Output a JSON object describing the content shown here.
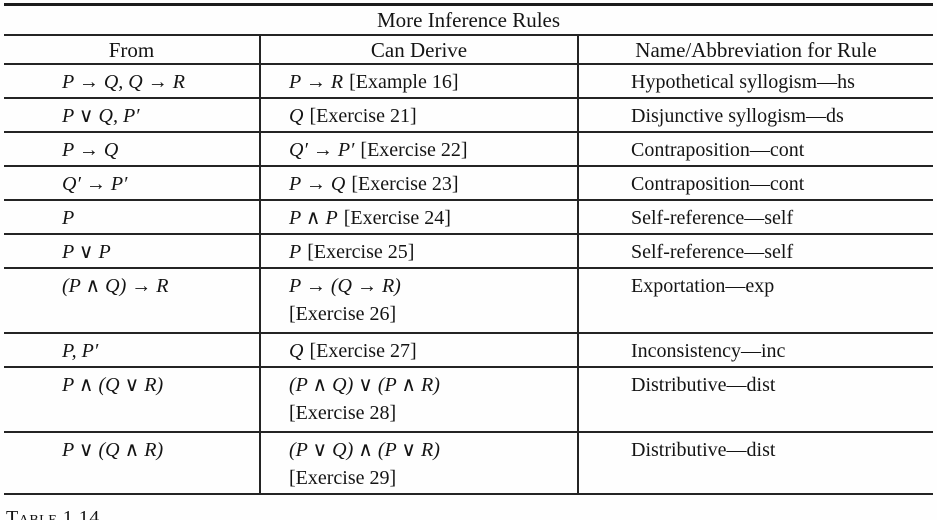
{
  "page": {
    "background": "#fefefe",
    "ink_color": "#141414"
  },
  "table": {
    "title": "More Inference Rules",
    "headers": [
      "From",
      "Can Derive",
      "Name/Abbreviation for Rule"
    ],
    "rows": [
      {
        "from": "P → Q, Q → R",
        "derive": "P → R",
        "note": "[Example 16]",
        "note_on_second_line": false,
        "name": "Hypothetical syllogism—hs"
      },
      {
        "from": "P ∨ Q, P′",
        "derive": "Q",
        "note": "[Exercise 21]",
        "note_on_second_line": false,
        "name": "Disjunctive syllogism—ds"
      },
      {
        "from": "P → Q",
        "derive": "Q′ → P′",
        "note": "[Exercise 22]",
        "note_on_second_line": false,
        "name": "Contraposition—cont"
      },
      {
        "from": "Q′ → P′",
        "derive": "P → Q",
        "note": "[Exercise 23]",
        "note_on_second_line": false,
        "name": "Contraposition—cont"
      },
      {
        "from": "P",
        "derive": "P ∧ P",
        "note": "[Exercise 24]",
        "note_on_second_line": false,
        "name": "Self-reference—self"
      },
      {
        "from": "P ∨ P",
        "derive": "P",
        "note": "[Exercise 25]",
        "note_on_second_line": false,
        "name": "Self-reference—self"
      },
      {
        "from": "(P ∧ Q) → R",
        "derive": "P → (Q → R)",
        "note": "[Exercise 26]",
        "note_on_second_line": true,
        "name": "Exportation—exp"
      },
      {
        "from": "P, P′",
        "derive": "Q",
        "note": "[Exercise 27]",
        "note_on_second_line": false,
        "name": "Inconsistency—inc"
      },
      {
        "from": "P ∧ (Q ∨ R)",
        "derive": "(P ∧ Q) ∨ (P ∧ R)",
        "note": "[Exercise 28]",
        "note_on_second_line": true,
        "name": "Distributive—dist"
      },
      {
        "from": "P ∨ (Q ∧ R)",
        "derive": "(P ∨ Q) ∧ (P ∨ R)",
        "note": "[Exercise 29]",
        "note_on_second_line": true,
        "name": "Distributive—dist"
      }
    ]
  },
  "caption": "Table 1.14"
}
